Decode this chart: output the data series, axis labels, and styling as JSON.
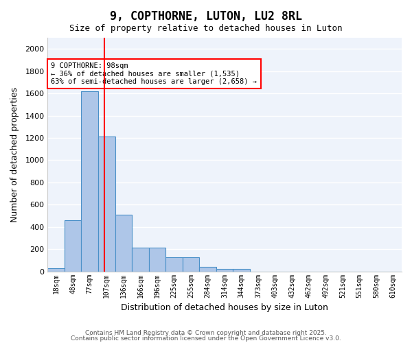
{
  "title": "9, COPTHORNE, LUTON, LU2 8RL",
  "subtitle": "Size of property relative to detached houses in Luton",
  "xlabel": "Distribution of detached houses by size in Luton",
  "ylabel": "Number of detached properties",
  "bar_color": "#aec6e8",
  "bar_edge_color": "#4a90c8",
  "background_color": "#eef3fb",
  "grid_color": "#ffffff",
  "categories": [
    "18sqm",
    "48sqm",
    "77sqm",
    "107sqm",
    "136sqm",
    "166sqm",
    "196sqm",
    "225sqm",
    "255sqm",
    "284sqm",
    "314sqm",
    "344sqm",
    "373sqm",
    "403sqm",
    "432sqm",
    "462sqm",
    "492sqm",
    "521sqm",
    "551sqm",
    "580sqm",
    "610sqm"
  ],
  "values": [
    30,
    460,
    1620,
    1210,
    510,
    215,
    215,
    130,
    130,
    40,
    25,
    20,
    0,
    0,
    0,
    0,
    0,
    0,
    0,
    0,
    0
  ],
  "red_line_x": 2.85,
  "annotation_title": "9 COPTHORNE: 98sqm",
  "annotation_line1": "← 36% of detached houses are smaller (1,535)",
  "annotation_line2": "63% of semi-detached houses are larger (2,658) →",
  "ylim": [
    0,
    2100
  ],
  "yticks": [
    0,
    200,
    400,
    600,
    800,
    1000,
    1200,
    1400,
    1600,
    1800,
    2000
  ],
  "footer1": "Contains HM Land Registry data © Crown copyright and database right 2025.",
  "footer2": "Contains public sector information licensed under the Open Government Licence v3.0."
}
